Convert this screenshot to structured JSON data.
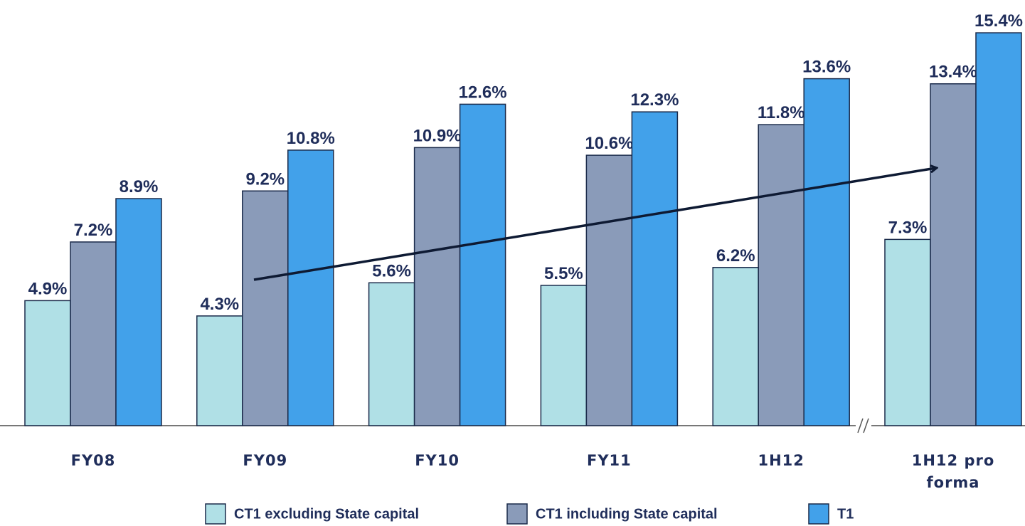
{
  "chart_data": {
    "type": "bar",
    "categories": [
      "FY08",
      "FY09",
      "FY10",
      "FY11",
      "1H12",
      "1H12 pro forma"
    ],
    "series": [
      {
        "name": "CT1 excluding State capital",
        "color": "#b0e0e6",
        "values": [
          4.9,
          4.3,
          5.6,
          5.5,
          6.2,
          7.3
        ],
        "value_labels": [
          "4.9%",
          "4.3%",
          "5.6%",
          "5.5%",
          "6.2%",
          "7.3%"
        ]
      },
      {
        "name": "CT1 including State capital",
        "color": "#8a9bb9",
        "values": [
          7.2,
          9.2,
          10.9,
          10.6,
          11.8,
          13.4
        ],
        "value_labels": [
          "7.2%",
          "9.2%",
          "10.9%",
          "10.6%",
          "11.8%",
          "13.4%"
        ]
      },
      {
        "name": "T1",
        "color": "#42a1ea",
        "values": [
          8.9,
          10.8,
          12.6,
          12.3,
          13.6,
          15.4
        ],
        "value_labels": [
          "8.9%",
          "10.8%",
          "12.6%",
          "12.3%",
          "13.6%",
          "15.4%"
        ]
      }
    ]
  }
}
